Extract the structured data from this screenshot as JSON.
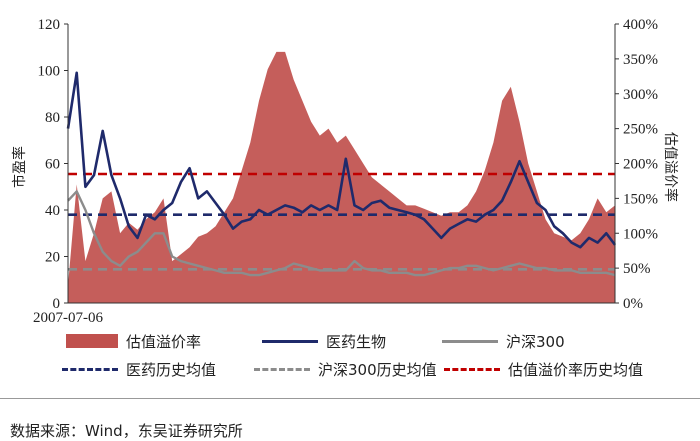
{
  "chart_data": {
    "type": "line",
    "left_axis": {
      "title": "市盈率",
      "ticks": [
        "0",
        "20",
        "40",
        "60",
        "80",
        "100",
        "120"
      ],
      "range": [
        0,
        120
      ]
    },
    "right_axis": {
      "title": "估值溢价率",
      "ticks": [
        "0%",
        "50%",
        "100%",
        "150%",
        "200%",
        "250%",
        "300%",
        "350%",
        "400%"
      ],
      "range": [
        0,
        4
      ]
    },
    "x_tick_label": "2007-07-06",
    "series": [
      {
        "name": "估值溢价率",
        "kind": "area",
        "axis": "right",
        "color": "#c0504d",
        "y": [
          0.25,
          1.7,
          0.6,
          1.0,
          1.5,
          1.6,
          1.0,
          1.15,
          1.05,
          1.2,
          1.3,
          1.5,
          0.6,
          0.7,
          0.8,
          0.95,
          1.0,
          1.1,
          1.3,
          1.5,
          1.9,
          2.3,
          2.9,
          3.35,
          3.6,
          3.6,
          3.2,
          2.9,
          2.6,
          2.4,
          2.5,
          2.3,
          2.4,
          2.2,
          2.0,
          1.8,
          1.7,
          1.6,
          1.5,
          1.4,
          1.4,
          1.35,
          1.3,
          1.25,
          1.3,
          1.3,
          1.4,
          1.6,
          1.9,
          2.3,
          2.9,
          3.1,
          2.6,
          2.0,
          1.6,
          1.2,
          1.0,
          0.95,
          0.9,
          1.0,
          1.2,
          1.5,
          1.3,
          1.4
        ]
      },
      {
        "name": "医药生物",
        "kind": "line",
        "axis": "left",
        "color": "#1f2a6b",
        "y": [
          75,
          99,
          50,
          55,
          74,
          55,
          45,
          33,
          28,
          38,
          36,
          40,
          43,
          52,
          58,
          45,
          48,
          43,
          38,
          32,
          35,
          36,
          40,
          38,
          40,
          42,
          41,
          39,
          42,
          40,
          42,
          40,
          62,
          42,
          40,
          43,
          44,
          41,
          40,
          39,
          38,
          36,
          32,
          28,
          32,
          34,
          36,
          35,
          38,
          40,
          44,
          52,
          61,
          52,
          43,
          40,
          33,
          30,
          26,
          24,
          28,
          26,
          30,
          25
        ]
      },
      {
        "name": "沪深300",
        "kind": "line",
        "axis": "left",
        "color": "#8c8c8c",
        "y": [
          44,
          48,
          40,
          30,
          22,
          18,
          16,
          20,
          22,
          26,
          30,
          30,
          20,
          18,
          17,
          16,
          15,
          14,
          13,
          13,
          13,
          12,
          12,
          13,
          14,
          15,
          17,
          16,
          15,
          14,
          14,
          14,
          14,
          18,
          15,
          14,
          14,
          13,
          13,
          13,
          12,
          12,
          13,
          14,
          15,
          15,
          16,
          16,
          15,
          14,
          15,
          16,
          17,
          16,
          15,
          15,
          14,
          14,
          14,
          13,
          13,
          13,
          13,
          12
        ]
      },
      {
        "name": "医药历史均值",
        "kind": "dashed",
        "axis": "left",
        "color": "#1f2a6b",
        "y": [
          38,
          38
        ]
      },
      {
        "name": "沪深300历史均值",
        "kind": "dashed",
        "axis": "left",
        "color": "#8c8c8c",
        "y": [
          14.5,
          14.5
        ]
      },
      {
        "name": "估值溢价率历史均值",
        "kind": "dashed",
        "axis": "right",
        "color": "#c00000",
        "y": [
          1.85,
          1.85
        ]
      }
    ]
  },
  "legend": [
    {
      "label": "估值溢价率",
      "swatch": "area"
    },
    {
      "label": "医药生物",
      "swatch": "line"
    },
    {
      "label": "沪深300",
      "swatch": "line-gray"
    },
    {
      "label": "医药历史均值",
      "swatch": "dash"
    },
    {
      "label": "沪深300历史均值",
      "swatch": "dash-gray"
    },
    {
      "label": "估值溢价率历史均值",
      "swatch": "dash-red"
    }
  ],
  "source_note": "数据来源：Wind，东吴证券研究所"
}
